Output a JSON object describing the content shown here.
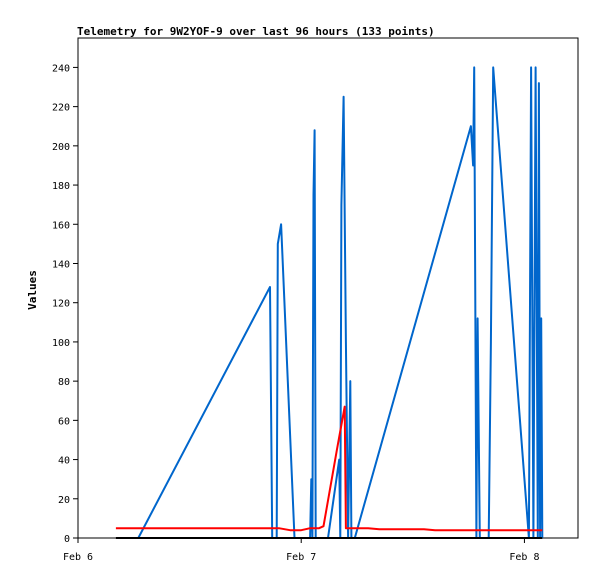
{
  "chart_data": {
    "type": "line",
    "title": "Telemetry for 9W2YOF-9 over last 96 hours (133 points)",
    "xlabel": "",
    "ylabel": "Values",
    "ylim": [
      0,
      255
    ],
    "xlim": [
      0.0,
      2.24
    ],
    "y_ticks": [
      0,
      20,
      40,
      60,
      80,
      100,
      120,
      140,
      160,
      180,
      200,
      220,
      240
    ],
    "x_ticks": [
      {
        "value": 0,
        "label": "Feb 6"
      },
      {
        "value": 1,
        "label": "Feb 7"
      },
      {
        "value": 2,
        "label": "Feb 8"
      }
    ],
    "grid": false,
    "legend": "none",
    "series": [
      {
        "color": "#0066cc",
        "points": [
          [
            0.27,
            0
          ],
          [
            0.86,
            128
          ],
          [
            0.865,
            65
          ],
          [
            0.87,
            0
          ],
          [
            0.89,
            0
          ],
          [
            0.895,
            150
          ],
          [
            0.91,
            160
          ],
          [
            0.97,
            0
          ],
          [
            1.04,
            0
          ],
          [
            1.045,
            30
          ],
          [
            1.05,
            0
          ],
          [
            1.055,
            175
          ],
          [
            1.06,
            208
          ],
          [
            1.065,
            0
          ],
          [
            1.08,
            0
          ],
          [
            1.12,
            0
          ],
          [
            1.17,
            40
          ],
          [
            1.175,
            0
          ],
          [
            1.18,
            170
          ],
          [
            1.19,
            225
          ],
          [
            1.2,
            100
          ],
          [
            1.21,
            0
          ],
          [
            1.22,
            80
          ],
          [
            1.225,
            0
          ],
          [
            1.24,
            0
          ],
          [
            1.76,
            210
          ],
          [
            1.77,
            190
          ],
          [
            1.775,
            240
          ],
          [
            1.785,
            0
          ],
          [
            1.79,
            112
          ],
          [
            1.8,
            0
          ],
          [
            1.84,
            0
          ],
          [
            1.85,
            100
          ],
          [
            1.86,
            240
          ],
          [
            1.87,
            225
          ],
          [
            2.02,
            0
          ],
          [
            2.03,
            240
          ],
          [
            2.04,
            0
          ],
          [
            2.045,
            120
          ],
          [
            2.05,
            240
          ],
          [
            2.06,
            0
          ],
          [
            2.065,
            232
          ],
          [
            2.07,
            0
          ],
          [
            2.075,
            112
          ],
          [
            2.08,
            0
          ]
        ]
      },
      {
        "color": "#ff0000",
        "points": [
          [
            0.17,
            5
          ],
          [
            0.9,
            5
          ],
          [
            0.95,
            4
          ],
          [
            1.0,
            4
          ],
          [
            1.04,
            5
          ],
          [
            1.08,
            5
          ],
          [
            1.1,
            6
          ],
          [
            1.16,
            45
          ],
          [
            1.195,
            67
          ],
          [
            1.2,
            5
          ],
          [
            1.3,
            5
          ],
          [
            1.35,
            4.5
          ],
          [
            1.55,
            4.5
          ],
          [
            1.6,
            4
          ],
          [
            1.8,
            4
          ],
          [
            1.85,
            4
          ],
          [
            2.08,
            4
          ]
        ]
      },
      {
        "color": "#000000",
        "points": [
          [
            0.17,
            0
          ],
          [
            2.08,
            0
          ]
        ]
      }
    ]
  }
}
